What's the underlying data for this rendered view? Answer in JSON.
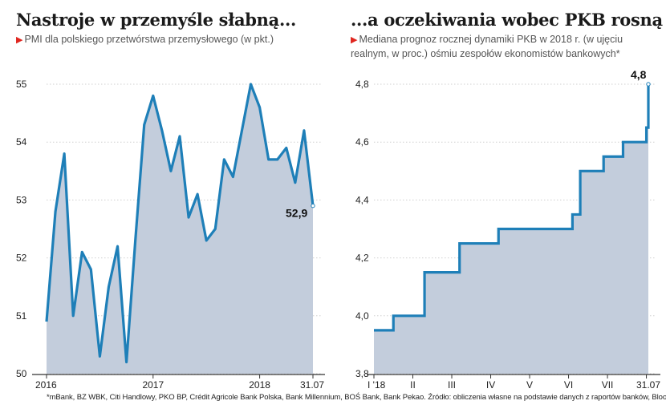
{
  "left": {
    "title": "Nastroje w przemyśle słabną...",
    "subtitle_marker": "▶",
    "subtitle": "PMI dla polskiego przetwórstwa przemysłowego (w pkt.)"
  },
  "right": {
    "title": "...a oczekiwania wobec PKB rosną",
    "subtitle_marker": "▶",
    "subtitle": "Mediana prognoz rocznej dynamiki PKB w 2018 r. (w ujęciu realnym, w proc.) ośmiu zespołów ekonomistów bankowych*"
  },
  "footnote": "*mBank, BZ WBK, Citi Handlowy, PKO BP, Crédit Agricole Bank Polska, Bank Millennium, BOŚ Bank, Bank Pekao. Źródło: obliczenia własne na podstawie danych z raportów banków, Bloomberg",
  "colors": {
    "line": "#1e7fb8",
    "fill": "#c3cddc",
    "grid": "#cfcfcf",
    "accent": "#e0261f"
  },
  "chart_data": [
    {
      "type": "area",
      "ylim": [
        50,
        55
      ],
      "yticks": [
        50,
        51,
        52,
        53,
        54,
        55
      ],
      "xtick_labels": [
        {
          "label": "2016",
          "index": 0
        },
        {
          "label": "2017",
          "index": 12
        },
        {
          "label": "2018",
          "index": 24
        },
        {
          "label": "31.07",
          "index": 30
        }
      ],
      "values": [
        50.9,
        52.8,
        53.8,
        51.0,
        52.1,
        51.8,
        50.3,
        51.5,
        52.2,
        50.2,
        52.3,
        54.3,
        54.8,
        54.2,
        53.5,
        54.1,
        52.7,
        53.1,
        52.3,
        52.5,
        53.7,
        53.4,
        54.2,
        55.0,
        54.6,
        53.7,
        53.7,
        53.9,
        53.3,
        54.2,
        52.9
      ],
      "last_label": "52,9",
      "grid": true,
      "legend": "none"
    },
    {
      "type": "area",
      "step": true,
      "ylim": [
        3.8,
        4.8
      ],
      "yticks": [
        "3,8",
        "4,0",
        "4,2",
        "4,4",
        "4,6",
        "4,8"
      ],
      "ytick_values": [
        3.8,
        4.0,
        4.2,
        4.4,
        4.6,
        4.8
      ],
      "xrange": [
        0,
        7.5
      ],
      "xtick_labels": [
        {
          "label": "I '18",
          "pos": 0
        },
        {
          "label": "II",
          "pos": 1
        },
        {
          "label": "III",
          "pos": 2
        },
        {
          "label": "IV",
          "pos": 3
        },
        {
          "label": "V",
          "pos": 4
        },
        {
          "label": "VI",
          "pos": 5
        },
        {
          "label": "VII",
          "pos": 6
        },
        {
          "label": "31.07",
          "pos": 7.0
        }
      ],
      "points": [
        {
          "x": 0.0,
          "y": 3.95
        },
        {
          "x": 0.5,
          "y": 4.0
        },
        {
          "x": 1.3,
          "y": 4.15
        },
        {
          "x": 2.2,
          "y": 4.25
        },
        {
          "x": 3.2,
          "y": 4.3
        },
        {
          "x": 5.1,
          "y": 4.35
        },
        {
          "x": 5.3,
          "y": 4.5
        },
        {
          "x": 5.9,
          "y": 4.55
        },
        {
          "x": 6.4,
          "y": 4.6
        },
        {
          "x": 7.0,
          "y": 4.65
        },
        {
          "x": 7.05,
          "y": 4.8
        }
      ],
      "last_label": "4,8",
      "grid": true,
      "legend": "none"
    }
  ]
}
